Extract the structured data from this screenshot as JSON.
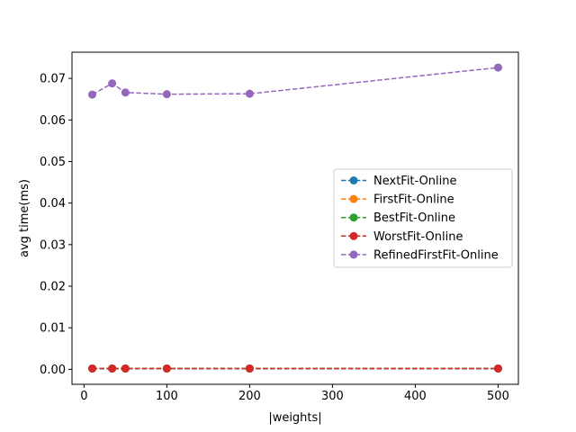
{
  "chart_data": {
    "type": "line",
    "title": "",
    "xlabel": "|weights|",
    "ylabel": "avg time(ms)",
    "xlim": [
      -14.5,
      524.5
    ],
    "ylim": [
      -0.0036,
      0.0763
    ],
    "x_ticks": [
      0,
      100,
      200,
      300,
      400,
      500
    ],
    "y_ticks": [
      0.0,
      0.01,
      0.02,
      0.03,
      0.04,
      0.05,
      0.06,
      0.07
    ],
    "x_tick_labels": [
      "0",
      "100",
      "200",
      "300",
      "400",
      "500"
    ],
    "y_tick_labels": [
      "0.00",
      "0.01",
      "0.02",
      "0.03",
      "0.04",
      "0.05",
      "0.06",
      "0.07"
    ],
    "grid": false,
    "legend_position": "center-right",
    "line_style": "dashed",
    "marker": "circle",
    "x": [
      10,
      34,
      50,
      100,
      200,
      500
    ],
    "series": [
      {
        "name": "NextFit-Online",
        "color": "#1f77b4",
        "values": [
          0.0002,
          0.0002,
          0.0002,
          0.0002,
          0.0002,
          0.0002
        ]
      },
      {
        "name": "FirstFit-Online",
        "color": "#ff7f0e",
        "values": [
          0.0002,
          0.0002,
          0.0002,
          0.0002,
          0.0002,
          0.0002
        ]
      },
      {
        "name": "BestFit-Online",
        "color": "#2ca02c",
        "values": [
          0.0002,
          0.0002,
          0.0002,
          0.0002,
          0.0002,
          0.0002
        ]
      },
      {
        "name": "WorstFit-Online",
        "color": "#d62728",
        "values": [
          0.0002,
          0.0002,
          0.0002,
          0.0002,
          0.0002,
          0.0002
        ]
      },
      {
        "name": "RefinedFirstFit-Online",
        "color": "#9467bd",
        "values": [
          0.0661,
          0.0688,
          0.0666,
          0.0662,
          0.0663,
          0.0726
        ]
      }
    ]
  }
}
